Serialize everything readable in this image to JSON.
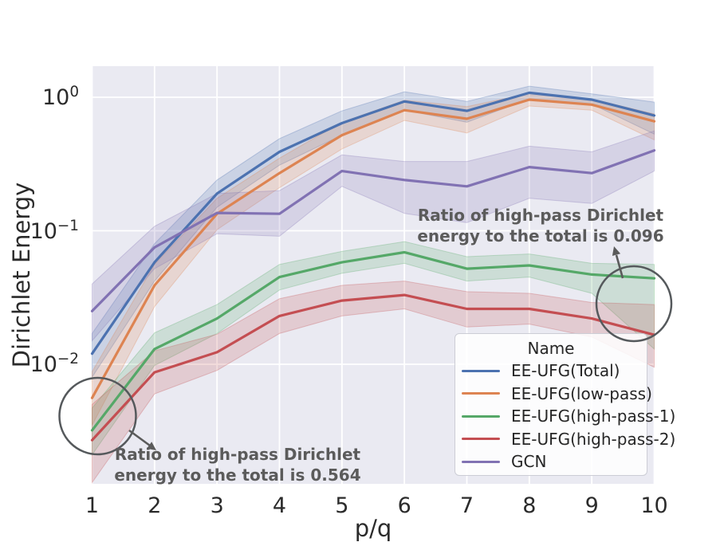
{
  "chart_data": {
    "type": "line",
    "title": "",
    "xlabel": "p/q",
    "ylabel": "Dirichlet Energy",
    "yscale": "log",
    "xlim": [
      1,
      10
    ],
    "ylim": [
      0.0013,
      1.71
    ],
    "grid": true,
    "plot_bg": "#eaeaf2",
    "grid_color": "#ffffff",
    "text_color": "#2b2b2b",
    "annotation_color": "#5b5b5b",
    "circle_color": "#55595c",
    "x": [
      1,
      2,
      3,
      4,
      5,
      6,
      7,
      8,
      9,
      10
    ],
    "xticks": [
      "1",
      "2",
      "3",
      "4",
      "5",
      "6",
      "7",
      "8",
      "9",
      "10"
    ],
    "yticks": [
      {
        "base": "10",
        "exp": "0",
        "value": 1
      },
      {
        "base": "10",
        "exp": "−1",
        "value": 0.1
      },
      {
        "base": "10",
        "exp": "−2",
        "value": 0.01
      }
    ],
    "legend": {
      "title": "Name",
      "position": "lower right"
    },
    "series": [
      {
        "name": "EE-UFG(Total)",
        "color": "#4c72b0",
        "values": [
          0.012,
          0.058,
          0.19,
          0.39,
          0.64,
          0.93,
          0.79,
          1.08,
          0.96,
          0.73
        ],
        "lo": [
          0.008,
          0.042,
          0.15,
          0.31,
          0.52,
          0.8,
          0.65,
          0.97,
          0.89,
          0.53
        ],
        "hi": [
          0.017,
          0.08,
          0.24,
          0.49,
          0.79,
          1.1,
          0.93,
          1.21,
          1.06,
          0.92
        ]
      },
      {
        "name": "EE-UFG(low-pass)",
        "color": "#dd8452",
        "values": [
          0.0056,
          0.039,
          0.134,
          0.27,
          0.52,
          0.8,
          0.69,
          0.96,
          0.88,
          0.66
        ],
        "lo": [
          0.0035,
          0.027,
          0.102,
          0.21,
          0.41,
          0.67,
          0.54,
          0.86,
          0.8,
          0.48
        ],
        "hi": [
          0.0088,
          0.056,
          0.175,
          0.35,
          0.65,
          0.95,
          0.85,
          1.07,
          0.97,
          0.75
        ]
      },
      {
        "name": "EE-UFG(high-pass-1)",
        "color": "#55a868",
        "values": [
          0.0032,
          0.013,
          0.022,
          0.045,
          0.058,
          0.069,
          0.052,
          0.055,
          0.047,
          0.044
        ],
        "lo": [
          0.0021,
          0.0098,
          0.017,
          0.036,
          0.048,
          0.057,
          0.042,
          0.045,
          0.034,
          0.013
        ],
        "hi": [
          0.0047,
          0.0172,
          0.028,
          0.056,
          0.07,
          0.083,
          0.064,
          0.067,
          0.057,
          0.056
        ]
      },
      {
        "name": "EE-UFG(high-pass-2)",
        "color": "#c44e52",
        "values": [
          0.0027,
          0.0087,
          0.0123,
          0.023,
          0.03,
          0.033,
          0.026,
          0.026,
          0.022,
          0.0166
        ],
        "lo": [
          0.0013,
          0.006,
          0.009,
          0.017,
          0.023,
          0.026,
          0.019,
          0.02,
          0.016,
          0.0095
        ],
        "hi": [
          0.005,
          0.0126,
          0.0168,
          0.031,
          0.039,
          0.042,
          0.035,
          0.034,
          0.029,
          0.028
        ]
      },
      {
        "name": "GCN",
        "color": "#8172b3",
        "values": [
          0.025,
          0.075,
          0.136,
          0.134,
          0.28,
          0.24,
          0.215,
          0.3,
          0.27,
          0.4
        ],
        "lo": [
          0.015,
          0.052,
          0.095,
          0.091,
          0.215,
          0.135,
          0.115,
          0.175,
          0.16,
          0.28
        ],
        "hi": [
          0.04,
          0.108,
          0.19,
          0.2,
          0.37,
          0.33,
          0.33,
          0.43,
          0.39,
          0.56
        ]
      }
    ],
    "annotations": [
      {
        "id": "high",
        "lines": [
          "Ratio of high-pass Dirichlet",
          "energy to the total is 0.096"
        ],
        "value": "0.096"
      },
      {
        "id": "low",
        "lines": [
          "Ratio of high-pass Dirichlet",
          "energy to the total is 0.564"
        ],
        "value": "0.564"
      }
    ]
  }
}
